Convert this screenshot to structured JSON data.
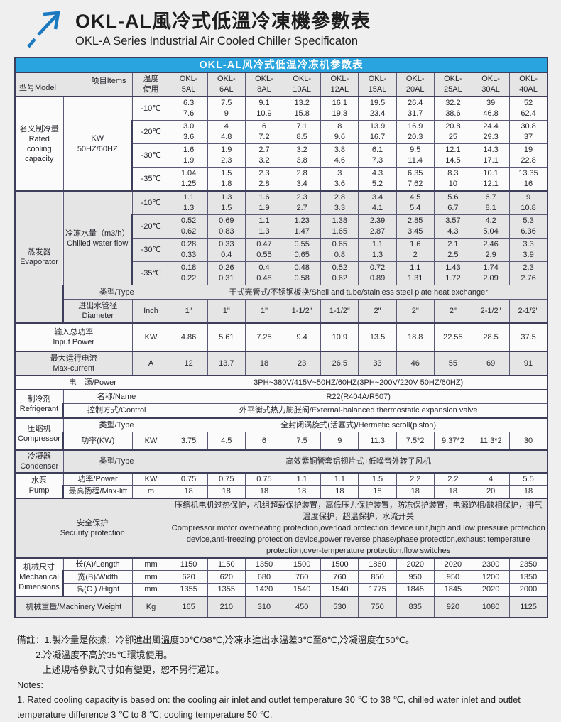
{
  "page": {
    "title_zh": "OKL-AL風冷式低溫冷凍機參數表",
    "title_en": "OKL-A Series Industrial Air Cooled Chiller Specificaton"
  },
  "colors": {
    "accent_blue": "#29a4de",
    "arrow_blue": "#1b79c0",
    "cell_gray": "#e6e5e5",
    "border_dark": "#3e3e5a"
  },
  "table": {
    "caption": "OKL-AL风冷式低温冷冻机参数表",
    "header": {
      "model_label": "型号Model",
      "items_label": "项目Items",
      "temp_line1": "温度",
      "temp_line2": "使用",
      "model_prefix": "OKL-",
      "models": [
        "5AL",
        "6AL",
        "8AL",
        "10AL",
        "12AL",
        "15AL",
        "20AL",
        "25AL",
        "30AL",
        "40AL"
      ]
    },
    "cooling": {
      "label_zh": "名义制冷量",
      "label_en": "Rated cooling capacity",
      "unit_line1": "KW",
      "unit_line2": "50HZ/60HZ",
      "rows": [
        {
          "temp": "-10℃",
          "hz50": [
            "6.3",
            "7.5",
            "9.1",
            "13.2",
            "16.1",
            "19.5",
            "26.4",
            "32.2",
            "39",
            "52"
          ],
          "hz60": [
            "7.6",
            "9",
            "10.9",
            "15.8",
            "19.3",
            "23.4",
            "31.7",
            "38.6",
            "46.8",
            "62.4"
          ]
        },
        {
          "temp": "-20℃",
          "hz50": [
            "3.0",
            "4",
            "6",
            "7.1",
            "8",
            "13.9",
            "16.9",
            "20.8",
            "24.4",
            "30.8"
          ],
          "hz60": [
            "3.6",
            "4.8",
            "7.2",
            "8.5",
            "9.6",
            "16.7",
            "20.3",
            "25",
            "29.3",
            "37"
          ]
        },
        {
          "temp": "-30℃",
          "hz50": [
            "1.6",
            "1.9",
            "2.7",
            "3.2",
            "3.8",
            "6.1",
            "9.5",
            "12.1",
            "14.3",
            "19"
          ],
          "hz60": [
            "1.9",
            "2.3",
            "3.2",
            "3.8",
            "4.6",
            "7.3",
            "11.4",
            "14.5",
            "17.1",
            "22.8"
          ]
        },
        {
          "temp": "-35℃",
          "hz50": [
            "1.04",
            "1.5",
            "2.3",
            "2.8",
            "3",
            "4.3",
            "6.35",
            "8.3",
            "10.1",
            "13.35"
          ],
          "hz60": [
            "1.25",
            "1.8",
            "2.8",
            "3.4",
            "3.6",
            "5.2",
            "7.62",
            "10",
            "12.1",
            "16"
          ]
        }
      ]
    },
    "evaporator": {
      "label_zh": "蒸发器",
      "label_en": "Evaporator",
      "flow_label_zh": "冷冻水量（m3/h）",
      "flow_label_en": "Chilled water flow",
      "rows": [
        {
          "temp": "-10℃",
          "hz50": [
            "1.1",
            "1.3",
            "1.6",
            "2.3",
            "2.8",
            "3.4",
            "4.5",
            "5.6",
            "6.7",
            "9"
          ],
          "hz60": [
            "1.3",
            "1.5",
            "1.9",
            "2.7",
            "3.3",
            "4.1",
            "5.4",
            "6.7",
            "8.1",
            "10.8"
          ]
        },
        {
          "temp": "-20℃",
          "hz50": [
            "0.52",
            "0.69",
            "1.1",
            "1.23",
            "1.38",
            "2.39",
            "2.85",
            "3.57",
            "4.2",
            "5.3"
          ],
          "hz60": [
            "0.62",
            "0.83",
            "1.3",
            "1.47",
            "1.65",
            "2.87",
            "3.45",
            "4.3",
            "5.04",
            "6.36"
          ]
        },
        {
          "temp": "-30℃",
          "hz50": [
            "0.28",
            "0.33",
            "0.47",
            "0.55",
            "0.65",
            "1.1",
            "1.6",
            "2.1",
            "2.46",
            "3.3"
          ],
          "hz60": [
            "0.33",
            "0.4",
            "0.55",
            "0.65",
            "0.8",
            "1.3",
            "2",
            "2.5",
            "2.9",
            "3.9"
          ]
        },
        {
          "temp": "-35℃",
          "hz50": [
            "0.18",
            "0.26",
            "0.4",
            "0.48",
            "0.52",
            "0.72",
            "1.1",
            "1.43",
            "1.74",
            "2.3"
          ],
          "hz60": [
            "0.22",
            "0.31",
            "0.48",
            "0.58",
            "0.62",
            "0.89",
            "1.31",
            "1.72",
            "2.09",
            "2.76"
          ]
        }
      ],
      "type_label": "类型/Type",
      "type_value": "干式壳管式/不锈钢板换/Shell and tube/stainless steel plate heat exchanger",
      "diameter_label_zh": "进出水管径",
      "diameter_label_en": "Diameter",
      "diameter_unit": "Inch",
      "diameter_values": [
        "1\"",
        "1\"",
        "1\"",
        "1-1/2\"",
        "1-1/2\"",
        "2\"",
        "2\"",
        "2\"",
        "2-1/2\"",
        "2-1/2\""
      ]
    },
    "input_power": {
      "label_zh": "输入总功率",
      "label_en": "Input Power",
      "unit": "KW",
      "values": [
        "4.86",
        "5.61",
        "7.25",
        "9.4",
        "10.9",
        "13.5",
        "18.8",
        "22.55",
        "28.5",
        "37.5"
      ]
    },
    "max_current": {
      "label_zh": "最大运行电流",
      "label_en": "Max-current",
      "unit": "A",
      "values": [
        "12",
        "13.7",
        "18",
        "23",
        "26.5",
        "33",
        "46",
        "55",
        "69",
        "91"
      ]
    },
    "power_supply": {
      "label": "电　源/Power",
      "value": "3PH~380V/415V~50HZ/60HZ(3PH~200V/220V  50HZ/60HZ)"
    },
    "refrigerant": {
      "label_zh": "制冷剂",
      "label_en": "Refrigerant",
      "name_label": "名称/Name",
      "name_value": "R22(R404A/R507)",
      "control_label": "控制方式/Control",
      "control_value": "外平衡式热力膨胀阀/External-balanced thermostatic expansion valve"
    },
    "compressor": {
      "label_zh": "压缩机",
      "label_en": "Compressor",
      "type_label": "类型/Type",
      "type_value": "全封闭涡旋式(活塞式)/Hermetic scroll(piston)",
      "power_label": "功率(KW)",
      "power_unit": "KW",
      "power_values": [
        "3.75",
        "4.5",
        "6",
        "7.5",
        "9",
        "11.3",
        "7.5*2",
        "9.37*2",
        "11.3*2",
        "30"
      ]
    },
    "condenser": {
      "label_zh": "冷凝器",
      "label_en": "Condenser",
      "type_label": "类型/Type",
      "type_value": "高效紫铜管套铝翅片式+低噪音外转子风机"
    },
    "pump": {
      "label_zh": "水泵",
      "label_en": "Pump",
      "power_label": "功率/Power",
      "power_unit": "KW",
      "power_values": [
        "0.75",
        "0.75",
        "0.75",
        "1.1",
        "1.1",
        "1.5",
        "2.2",
        "2.2",
        "4",
        "5.5"
      ],
      "lift_label": "最高扬程/Max-lift",
      "lift_unit": "m",
      "lift_values": [
        "18",
        "18",
        "18",
        "18",
        "18",
        "18",
        "18",
        "18",
        "20",
        "18"
      ]
    },
    "security": {
      "label_zh": "安全保护",
      "label_en": "Security protection",
      "text_zh": "压缩机电机过热保护，机组超载保护装置，高低压力保护装置，防冻保护装置，电源逆相/缺相保护，排气温度保护，超温保护，水流开关",
      "text_en": " Compressor motor overheating protection,overload protection device unit,high and low pressure protection device,anti-freezing protection device,power reverse phase/phase protection,exhaust temperature protection,over-temperature protection,flow switches"
    },
    "dimensions": {
      "label_zh": "机械尺寸",
      "label_en1": "Mechanical",
      "label_en2": "Dimensions",
      "length_label": "长(A)/Length",
      "width_label": "宽(B)/Width",
      "height_label": "高(C ) /Hight",
      "unit": "mm",
      "length_values": [
        "1150",
        "1150",
        "1350",
        "1500",
        "1500",
        "1860",
        "2020",
        "2020",
        "2300",
        "2350"
      ],
      "width_values": [
        "620",
        "620",
        "680",
        "760",
        "760",
        "850",
        "950",
        "950",
        "1200",
        "1350"
      ],
      "height_values": [
        "1355",
        "1355",
        "1420",
        "1540",
        "1540",
        "1775",
        "1845",
        "1845",
        "2020",
        "2000"
      ]
    },
    "weight": {
      "label": "机械重量/Machinery Weight",
      "unit": "Kg",
      "values": [
        "165",
        "210",
        "310",
        "450",
        "530",
        "750",
        "835",
        "920",
        "1080",
        "1125"
      ]
    }
  },
  "notes": {
    "line1": "備註：1.製冷量是依據：冷卻進出風溫度30℃/38℃,冷凍水進出水溫差3℃至8℃,冷凝溫度在50℃。",
    "line2": "2.冷凝溫度不高於35℃環境使用。",
    "line3": "上述規格參數尺寸如有變更，恕不另行通知。",
    "line4": "Notes:",
    "line5": "1. Rated cooling capacity is based on: the cooling air inlet and outlet temperature 30 ℃ to 38 ℃, chilled water inlet and outlet temperature difference 3 ℃ to 8 ℃; cooling temperature 50 ℃."
  }
}
